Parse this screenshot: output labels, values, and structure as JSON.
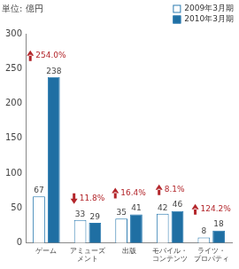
{
  "chart_data": {
    "type": "bar",
    "y_label": "単位: 億円",
    "categories": [
      "ゲーム",
      [
        "アミューズ",
        "メント"
      ],
      "出版",
      [
        "モバイル・",
        "コンテンツ"
      ],
      [
        "ライツ・",
        "プロパティ"
      ]
    ],
    "series": [
      {
        "name": "2009年3月期",
        "color": "#ffffff",
        "values": [
          67,
          33,
          35,
          42,
          8
        ]
      },
      {
        "name": "2010年3月期",
        "color": "#1f6fa3",
        "values": [
          238,
          29,
          41,
          46,
          18
        ]
      }
    ],
    "annotations": [
      {
        "text": "254.0%",
        "arrow": "up"
      },
      {
        "text": "11.8%",
        "arrow": "down"
      },
      {
        "text": "16.4%",
        "arrow": "up"
      },
      {
        "text": "8.1%",
        "arrow": "up"
      },
      {
        "text": "124.2%",
        "arrow": "up"
      }
    ],
    "ylim": [
      0,
      300
    ],
    "yticks": [
      0,
      50,
      100,
      150,
      200,
      250,
      300
    ],
    "grid": false,
    "legend": "top-right",
    "data_labels": true
  }
}
